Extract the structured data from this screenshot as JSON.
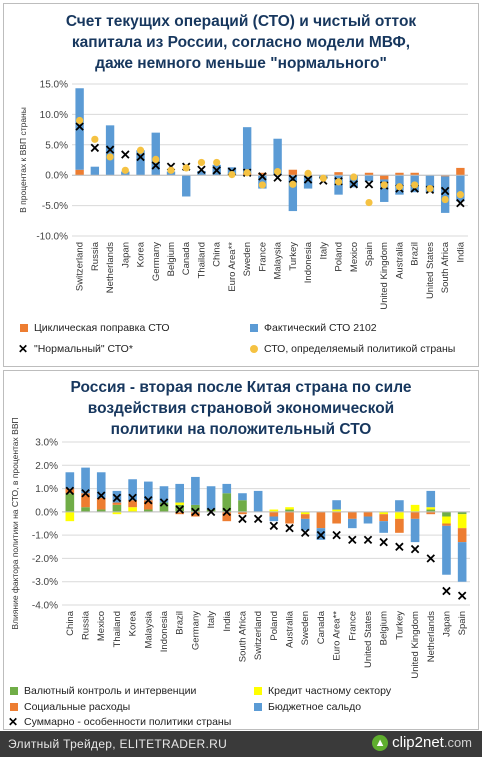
{
  "chart_data": [
    {
      "type": "bar",
      "title_lines": [
        "Счет текущих операций (СТО) и чистый отток",
        "капитала из России, согласно модели МВФ,",
        "даже немного меньше \"нормального\""
      ],
      "ylabel": "В процентах к ВВП страны",
      "ylim": [
        -10,
        15
      ],
      "yticks": [
        "15.0%",
        "10.0%",
        "5.0%",
        "0.0%",
        "-5.0%",
        "-10.0%"
      ],
      "categories": [
        "Switzerland",
        "Russia",
        "Netherlands",
        "Japan",
        "Korea",
        "Germany",
        "Belgium",
        "Canada",
        "Thailand",
        "China",
        "Euro Area**",
        "Sweden",
        "France",
        "Malaysia",
        "Turkey",
        "Indonesia",
        "Italy",
        "Poland",
        "Mexico",
        "Spain",
        "United Kingdom",
        "Australia",
        "Brazil",
        "United States",
        "South Africa",
        "India"
      ],
      "series": [
        {
          "name": "Циклическая поправка СТО",
          "color": "#ed7d31",
          "values": [
            0.9,
            0.0,
            0.0,
            0.0,
            0.0,
            0.0,
            0.0,
            0.0,
            0.0,
            0.0,
            0.0,
            0.3,
            0.4,
            0.0,
            0.9,
            0.0,
            0.0,
            0.5,
            0.0,
            0.4,
            -0.7,
            0.4,
            0.4,
            0.0,
            -0.2,
            1.2
          ]
        },
        {
          "name": "Фактический СТО 2102",
          "color": "#5b9bd5",
          "values": [
            13.4,
            1.4,
            8.2,
            0.6,
            4.1,
            7.0,
            0.6,
            -3.5,
            0.7,
            1.7,
            1.3,
            7.6,
            -2.2,
            6.0,
            -5.9,
            -2.2,
            -0.6,
            -3.2,
            -2.0,
            -1.0,
            -3.7,
            -3.2,
            -2.8,
            -2.8,
            -6.0,
            -4.3
          ]
        },
        {
          "name": "\"Нормальный\" СТО*",
          "color": "#000000",
          "marker": "x",
          "values": [
            8.0,
            4.5,
            4.2,
            3.4,
            3.0,
            1.6,
            1.4,
            1.4,
            0.9,
            0.8,
            0.6,
            0.4,
            -0.2,
            -0.4,
            -0.6,
            -0.7,
            -0.9,
            -1.0,
            -1.5,
            -1.5,
            -1.7,
            -2.2,
            -2.2,
            -2.4,
            -2.6,
            -4.6
          ]
        },
        {
          "name": "СТО, определяемый политикой страны",
          "color": "#f5c242",
          "marker": "dot",
          "values": [
            9.0,
            5.9,
            3.0,
            0.8,
            4.1,
            2.6,
            0.8,
            1.2,
            2.1,
            2.1,
            0.1,
            0.4,
            -1.6,
            0.6,
            -1.5,
            0.3,
            -0.5,
            -1.1,
            -0.3,
            -4.5,
            -1.6,
            -1.9,
            -1.6,
            -2.2,
            -4.0,
            -3.2
          ]
        }
      ],
      "legend": "bottom"
    },
    {
      "type": "bar",
      "title_lines": [
        "Россия - вторая после Китая страна по силе",
        "воздействия страновой экономической",
        "политики на положительный СТО"
      ],
      "ylabel": "Влияние фактора политики на СТО, в процентах ВВП",
      "ylim": [
        -4,
        3
      ],
      "yticks": [
        "3.0%",
        "2.0%",
        "1.0%",
        "0.0%",
        "-1.0%",
        "-2.0%",
        "-3.0%",
        "-4.0%"
      ],
      "categories": [
        "China",
        "Russia",
        "Mexico",
        "Thailand",
        "Korea",
        "Malaysia",
        "Indonesia",
        "Brazil",
        "Germany",
        "Italy",
        "India",
        "South Africa",
        "Switzerland",
        "Poland",
        "Australia",
        "Sweden",
        "Canada",
        "Euro Area**",
        "France",
        "United States",
        "Belgium",
        "Turkey",
        "United Kingdom",
        "Netherlands",
        "Japan",
        "Spain"
      ],
      "series": [
        {
          "name": "Валютный контроль и интервенции",
          "color": "#70ad47",
          "values": [
            0.8,
            0.2,
            0.1,
            0.3,
            0.0,
            0.1,
            0.4,
            0.3,
            0.3,
            0.1,
            0.8,
            0.5,
            0.0,
            0.0,
            0.1,
            0.0,
            0.0,
            0.0,
            0.0,
            0.0,
            0.0,
            0.0,
            0.0,
            0.1,
            -0.2,
            -0.1
          ]
        },
        {
          "name": "Кредит частному сектору",
          "color": "#ffff00",
          "values": [
            -0.4,
            0.0,
            0.0,
            -0.1,
            0.2,
            0.0,
            0.0,
            0.1,
            0.0,
            0.0,
            0.0,
            0.0,
            0.0,
            0.1,
            0.1,
            -0.1,
            0.0,
            0.1,
            0.0,
            0.0,
            -0.1,
            -0.3,
            0.3,
            0.1,
            -0.3,
            -0.6
          ]
        },
        {
          "name": "Социальные расходы",
          "color": "#ed7d31",
          "values": [
            0.2,
            0.6,
            0.5,
            0.1,
            0.3,
            0.4,
            0.0,
            -0.1,
            -0.2,
            0.0,
            -0.4,
            -0.1,
            0.0,
            -0.2,
            -0.5,
            -0.2,
            -0.7,
            -0.5,
            -0.3,
            -0.2,
            -0.3,
            -0.6,
            -0.3,
            -0.1,
            -0.1,
            -0.6
          ]
        },
        {
          "name": "Бюджетное сальдо",
          "color": "#5b9bd5",
          "values": [
            0.7,
            1.1,
            1.1,
            0.5,
            0.9,
            0.8,
            0.7,
            0.8,
            1.2,
            1.0,
            0.4,
            0.3,
            0.9,
            -0.2,
            0.0,
            -0.5,
            -0.5,
            0.4,
            -0.4,
            -0.3,
            -0.5,
            0.5,
            -1.0,
            0.7,
            -2.1,
            -1.7
          ]
        },
        {
          "name": "Суммарно - особенности политики страны",
          "color": "#000000",
          "marker": "x",
          "values": [
            0.9,
            0.8,
            0.7,
            0.6,
            0.6,
            0.5,
            0.4,
            0.1,
            0.0,
            0.0,
            0.0,
            -0.3,
            -0.3,
            -0.6,
            -0.7,
            -0.9,
            -1.0,
            -1.0,
            -1.2,
            -1.2,
            -1.3,
            -1.5,
            -1.6,
            -2.0,
            -3.4,
            -3.6
          ]
        }
      ],
      "legend": "bottom"
    }
  ],
  "legend1": [
    {
      "label": "Циклическая поправка СТО",
      "color": "#ed7d31",
      "kind": "square"
    },
    {
      "label": "Фактический СТО 2102",
      "color": "#5b9bd5",
      "kind": "square"
    },
    {
      "label": "\"Нормальный\" СТО*",
      "color": "#000000",
      "kind": "x"
    },
    {
      "label": "СТО, определяемый политикой страны",
      "color": "#f5c242",
      "kind": "dot"
    }
  ],
  "legend2": [
    {
      "label": "Валютный контроль и интервенции",
      "color": "#70ad47",
      "kind": "square"
    },
    {
      "label": "Кредит частному сектору",
      "color": "#ffff00",
      "kind": "square"
    },
    {
      "label": "Социальные расходы",
      "color": "#ed7d31",
      "kind": "square"
    },
    {
      "label": "Бюджетное сальдо",
      "color": "#5b9bd5",
      "kind": "square"
    },
    {
      "label": "Суммарно - особенности политики страны",
      "color": "#000000",
      "kind": "x"
    }
  ],
  "footer": {
    "text": "Элитный Трейдер, ELITETRADER.RU",
    "logo_main": "clip2net",
    "logo_suffix": ".com",
    "logo_icon": "arrow-up-icon"
  }
}
